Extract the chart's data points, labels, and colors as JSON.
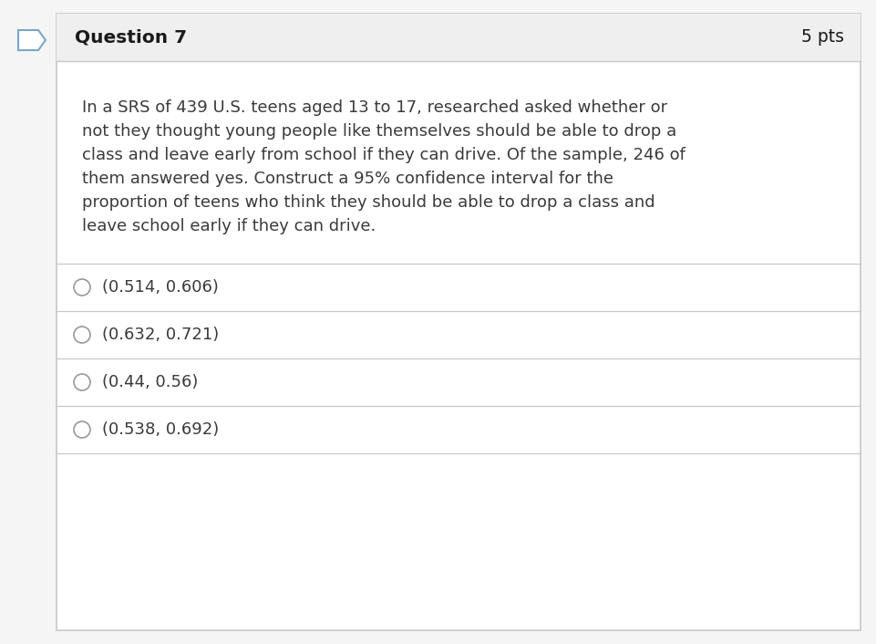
{
  "question_label": "Question 7",
  "pts_label": "5 pts",
  "question_text_lines": [
    "In a SRS of 439 U.S. teens aged 13 to 17, researched asked whether or",
    "not they thought young people like themselves should be able to drop a",
    "class and leave early from school if they can drive. Of the sample, 246 of",
    "them answered yes. Construct a 95% confidence interval for the",
    "proportion of teens who think they should be able to drop a class and",
    "leave school early if they can drive."
  ],
  "options": [
    "(0.514, 0.606)",
    "(0.632, 0.721)",
    "(0.44, 0.56)",
    "(0.538, 0.692)"
  ],
  "bg_color": "#ffffff",
  "outer_bg_color": "#f5f5f5",
  "header_bg_color": "#efefef",
  "border_color": "#c8c8c8",
  "text_color": "#3a3a3a",
  "header_text_color": "#1a1a1a",
  "option_text_color": "#3a3a3a",
  "bookmark_color": "#7ba7c4",
  "radio_color": "#999999",
  "header_font_size": 14.5,
  "pts_font_size": 13.5,
  "body_font_size": 13,
  "option_font_size": 13
}
